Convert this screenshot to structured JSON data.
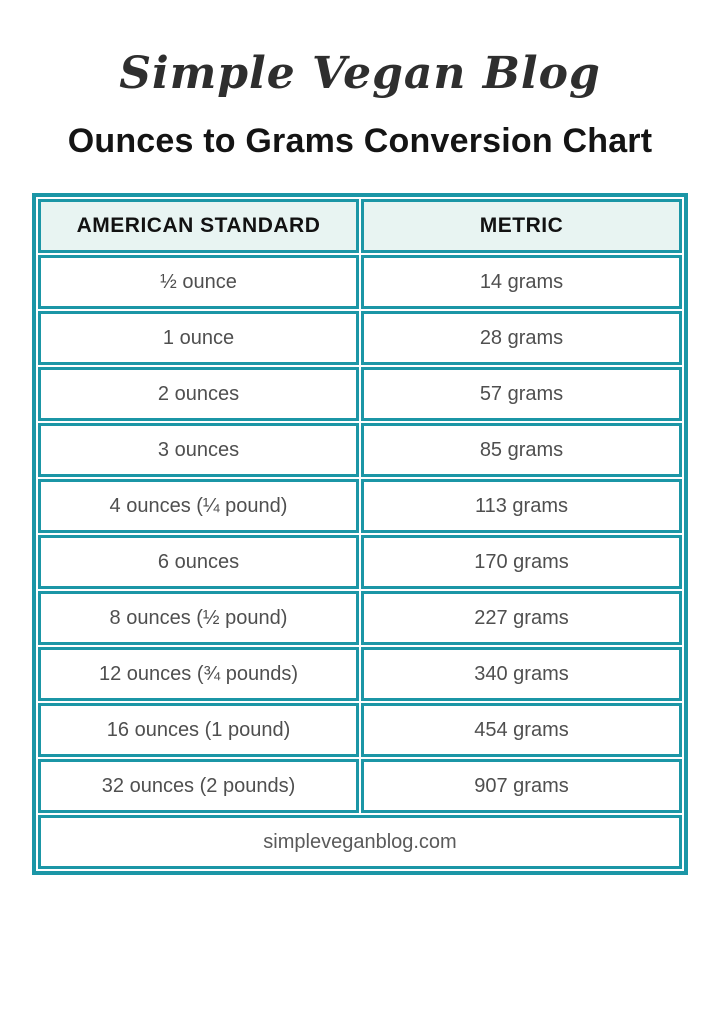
{
  "logo": {
    "text": "Simple Vegan Blog"
  },
  "title": {
    "text": "Ounces to Grams Conversion Chart"
  },
  "table": {
    "accent_color": "#1b96a6",
    "header_bg": "#e8f4f2",
    "columns": [
      "AMERICAN STANDARD",
      "METRIC"
    ],
    "rows": [
      [
        "½ ounce",
        "14 grams"
      ],
      [
        "1 ounce",
        "28 grams"
      ],
      [
        "2 ounces",
        "57 grams"
      ],
      [
        "3 ounces",
        "85 grams"
      ],
      [
        "4 ounces (¼ pound)",
        "113 grams"
      ],
      [
        "6 ounces",
        "170 grams"
      ],
      [
        "8 ounces (½ pound)",
        "227 grams"
      ],
      [
        "12 ounces (¾ pounds)",
        "340 grams"
      ],
      [
        "16 ounces (1 pound)",
        "454 grams"
      ],
      [
        "32 ounces (2 pounds)",
        "907 grams"
      ]
    ],
    "footer": "simpleveganblog.com"
  },
  "chart_data": {
    "type": "table",
    "title": "Ounces to Grams Conversion Chart",
    "columns": [
      "AMERICAN STANDARD",
      "METRIC"
    ],
    "ounces": [
      0.5,
      1,
      2,
      3,
      4,
      6,
      8,
      12,
      16,
      32
    ],
    "grams": [
      14,
      28,
      57,
      85,
      113,
      170,
      227,
      340,
      454,
      907
    ],
    "rows": [
      {
        "american_standard": "½ ounce",
        "metric": "14 grams"
      },
      {
        "american_standard": "1 ounce",
        "metric": "28 grams"
      },
      {
        "american_standard": "2 ounces",
        "metric": "57 grams"
      },
      {
        "american_standard": "3 ounces",
        "metric": "85 grams"
      },
      {
        "american_standard": "4 ounces (¼ pound)",
        "metric": "113 grams"
      },
      {
        "american_standard": "6 ounces",
        "metric": "170 grams"
      },
      {
        "american_standard": "8 ounces (½ pound)",
        "metric": "227 grams"
      },
      {
        "american_standard": "12 ounces (¾ pounds)",
        "metric": "340 grams"
      },
      {
        "american_standard": "16 ounces (1 pound)",
        "metric": "454 grams"
      },
      {
        "american_standard": "32 ounces (2 pounds)",
        "metric": "907 grams"
      }
    ],
    "source": "simpleveganblog.com"
  }
}
